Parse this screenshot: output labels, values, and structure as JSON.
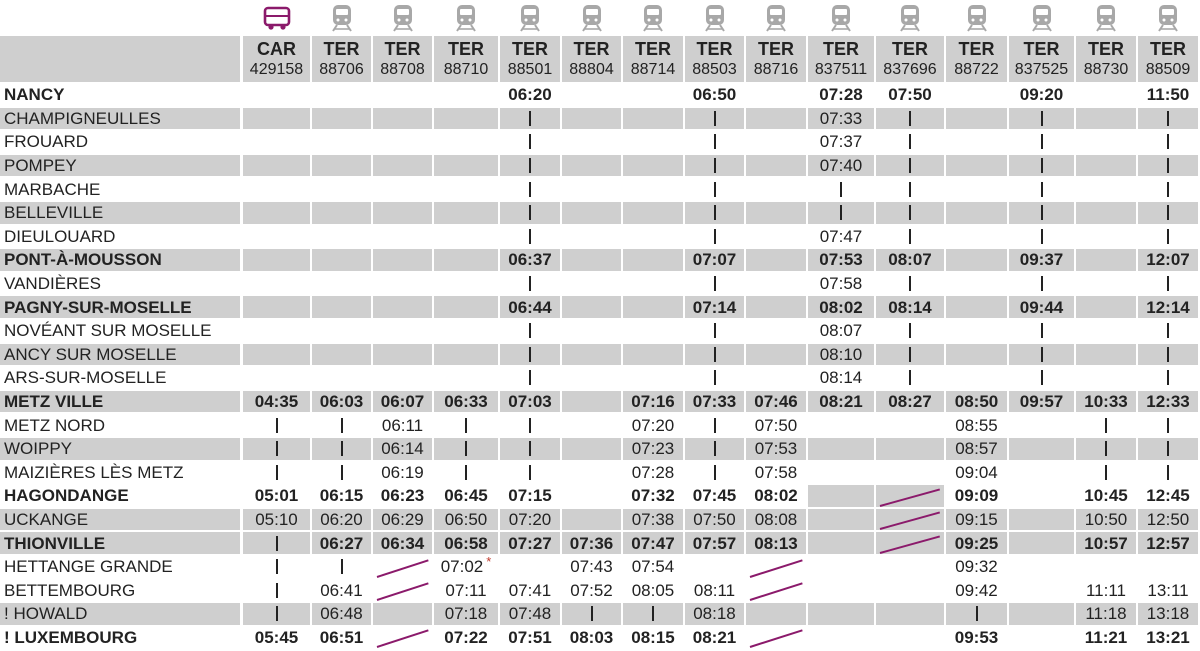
{
  "colors": {
    "bus_icon": "#8b1a6b",
    "train_icon": "#a8a8a8",
    "cancel_line": "#8b1a6b",
    "row_shade": "#cfcfcf"
  },
  "columns": [
    {
      "type": "CAR",
      "number": "429158",
      "icon": "bus-icon"
    },
    {
      "type": "TER",
      "number": "88706",
      "icon": "train-icon"
    },
    {
      "type": "TER",
      "number": "88708",
      "icon": "train-icon"
    },
    {
      "type": "TER",
      "number": "88710",
      "icon": "train-icon"
    },
    {
      "type": "TER",
      "number": "88501",
      "icon": "train-icon"
    },
    {
      "type": "TER",
      "number": "88804",
      "icon": "train-icon"
    },
    {
      "type": "TER",
      "number": "88714",
      "icon": "train-icon"
    },
    {
      "type": "TER",
      "number": "88503",
      "icon": "train-icon"
    },
    {
      "type": "TER",
      "number": "88716",
      "icon": "train-icon"
    },
    {
      "type": "TER",
      "number": "837511",
      "icon": "train-icon"
    },
    {
      "type": "TER",
      "number": "837696",
      "icon": "train-icon"
    },
    {
      "type": "TER",
      "number": "88722",
      "icon": "train-icon"
    },
    {
      "type": "TER",
      "number": "837525",
      "icon": "train-icon"
    },
    {
      "type": "TER",
      "number": "88730",
      "icon": "train-icon"
    },
    {
      "type": "TER",
      "number": "88509",
      "icon": "train-icon"
    }
  ],
  "rows": [
    {
      "station": "NANCY",
      "bold": true,
      "shade": false,
      "times": [
        "",
        "",
        "",
        "",
        "06:20",
        "",
        "",
        "06:50",
        "",
        "07:28",
        "07:50",
        "",
        "09:20",
        "",
        "11:50"
      ]
    },
    {
      "station": "CHAMPIGNEULLES",
      "bold": false,
      "shade": true,
      "times": [
        "",
        "",
        "",
        "",
        "|",
        "",
        "",
        "|",
        "",
        "07:33",
        "|",
        "",
        "|",
        "",
        "|"
      ]
    },
    {
      "station": "FROUARD",
      "bold": false,
      "shade": false,
      "times": [
        "",
        "",
        "",
        "",
        "|",
        "",
        "",
        "|",
        "",
        "07:37",
        "|",
        "",
        "|",
        "",
        "|"
      ]
    },
    {
      "station": "POMPEY",
      "bold": false,
      "shade": true,
      "times": [
        "",
        "",
        "",
        "",
        "|",
        "",
        "",
        "|",
        "",
        "07:40",
        "|",
        "",
        "|",
        "",
        "|"
      ]
    },
    {
      "station": "MARBACHE",
      "bold": false,
      "shade": false,
      "times": [
        "",
        "",
        "",
        "",
        "|",
        "",
        "",
        "|",
        "",
        "|",
        "|",
        "",
        "|",
        "",
        "|"
      ]
    },
    {
      "station": "BELLEVILLE",
      "bold": false,
      "shade": true,
      "times": [
        "",
        "",
        "",
        "",
        "|",
        "",
        "",
        "|",
        "",
        "|",
        "|",
        "",
        "|",
        "",
        "|"
      ]
    },
    {
      "station": "DIEULOUARD",
      "bold": false,
      "shade": false,
      "times": [
        "",
        "",
        "",
        "",
        "|",
        "",
        "",
        "|",
        "",
        "07:47",
        "|",
        "",
        "|",
        "",
        "|"
      ]
    },
    {
      "station": "PONT-À-MOUSSON",
      "bold": true,
      "shade": true,
      "times": [
        "",
        "",
        "",
        "",
        "06:37",
        "",
        "",
        "07:07",
        "",
        "07:53",
        "08:07",
        "",
        "09:37",
        "",
        "12:07"
      ]
    },
    {
      "station": "VANDIÈRES",
      "bold": false,
      "shade": false,
      "times": [
        "",
        "",
        "",
        "",
        "|",
        "",
        "",
        "|",
        "",
        "07:58",
        "|",
        "",
        "|",
        "",
        "|"
      ]
    },
    {
      "station": "PAGNY-SUR-MOSELLE",
      "bold": true,
      "shade": true,
      "times": [
        "",
        "",
        "",
        "",
        "06:44",
        "",
        "",
        "07:14",
        "",
        "08:02",
        "08:14",
        "",
        "09:44",
        "",
        "12:14"
      ]
    },
    {
      "station": "NOVÉANT SUR MOSELLE",
      "bold": false,
      "shade": false,
      "times": [
        "",
        "",
        "",
        "",
        "|",
        "",
        "",
        "|",
        "",
        "08:07",
        "|",
        "",
        "|",
        "",
        "|"
      ]
    },
    {
      "station": "ANCY SUR MOSELLE",
      "bold": false,
      "shade": true,
      "times": [
        "",
        "",
        "",
        "",
        "|",
        "",
        "",
        "|",
        "",
        "08:10",
        "|",
        "",
        "|",
        "",
        "|"
      ]
    },
    {
      "station": "ARS-SUR-MOSELLE",
      "bold": false,
      "shade": false,
      "times": [
        "",
        "",
        "",
        "",
        "|",
        "",
        "",
        "|",
        "",
        "08:14",
        "|",
        "",
        "|",
        "",
        "|"
      ]
    },
    {
      "station": "METZ VILLE",
      "bold": true,
      "shade": true,
      "times": [
        "04:35",
        "06:03",
        "06:07",
        "06:33",
        "07:03",
        "",
        "07:16",
        "07:33",
        "07:46",
        "08:21",
        "08:27",
        "08:50",
        "09:57",
        "10:33",
        "12:33"
      ]
    },
    {
      "station": "METZ NORD",
      "bold": false,
      "shade": false,
      "times": [
        "|",
        "|",
        "06:11",
        "|",
        "|",
        "",
        "07:20",
        "|",
        "07:50",
        "",
        "",
        "08:55",
        "",
        "|",
        "|"
      ]
    },
    {
      "station": "WOIPPY",
      "bold": false,
      "shade": true,
      "times": [
        "|",
        "|",
        "06:14",
        "|",
        "|",
        "",
        "07:23",
        "|",
        "07:53",
        "",
        "",
        "08:57",
        "",
        "|",
        "|"
      ]
    },
    {
      "station": "MAIZIÈRES LÈS METZ",
      "bold": false,
      "shade": false,
      "times": [
        "|",
        "|",
        "06:19",
        "|",
        "|",
        "",
        "07:28",
        "|",
        "07:58",
        "",
        "",
        "09:04",
        "",
        "|",
        "|"
      ]
    },
    {
      "station": "HAGONDANGE",
      "bold": true,
      "shade": false,
      "times": [
        "05:01",
        "06:15",
        "06:23",
        "06:45",
        "07:15",
        "",
        "07:32",
        "07:45",
        "08:02",
        "",
        "",
        "09:09",
        "",
        "10:45",
        "12:45"
      ]
    },
    {
      "station": "UCKANGE",
      "bold": false,
      "shade": true,
      "times": [
        "05:10",
        "06:20",
        "06:29",
        "06:50",
        "07:20",
        "",
        "07:38",
        "07:50",
        "08:08",
        "",
        "",
        "09:15",
        "",
        "10:50",
        "12:50"
      ]
    },
    {
      "station": "THIONVILLE",
      "bold": true,
      "shade": true,
      "times": [
        "|",
        "06:27",
        "06:34",
        "06:58",
        "07:27",
        "07:36",
        "07:47",
        "07:57",
        "08:13",
        "",
        "",
        "09:25",
        "",
        "10:57",
        "12:57"
      ]
    },
    {
      "station": "HETTANGE GRANDE",
      "bold": false,
      "shade": false,
      "times": [
        "|",
        "|",
        "",
        "07:02",
        "",
        "07:43",
        "07:54",
        "",
        "",
        "",
        "",
        "09:32",
        "",
        "",
        ""
      ]
    },
    {
      "station": "BETTEMBOURG",
      "bold": false,
      "shade": false,
      "times": [
        "|",
        "06:41",
        "",
        "07:11",
        "07:41",
        "07:52",
        "08:05",
        "08:11",
        "",
        "",
        "",
        "09:42",
        "",
        "11:11",
        "13:11"
      ]
    },
    {
      "station": "! HOWALD",
      "bold": false,
      "shade": true,
      "times": [
        "|",
        "06:48",
        "",
        "07:18",
        "07:48",
        "|",
        "|",
        "08:18",
        "",
        "",
        "",
        "|",
        "",
        "11:18",
        "13:18"
      ]
    },
    {
      "station": "! LUXEMBOURG",
      "bold": true,
      "shade": false,
      "times": [
        "05:45",
        "06:51",
        "",
        "07:22",
        "07:51",
        "08:03",
        "08:15",
        "08:21",
        "",
        "",
        "",
        "09:53",
        "",
        "11:21",
        "13:21"
      ]
    }
  ],
  "note_marker": "*"
}
